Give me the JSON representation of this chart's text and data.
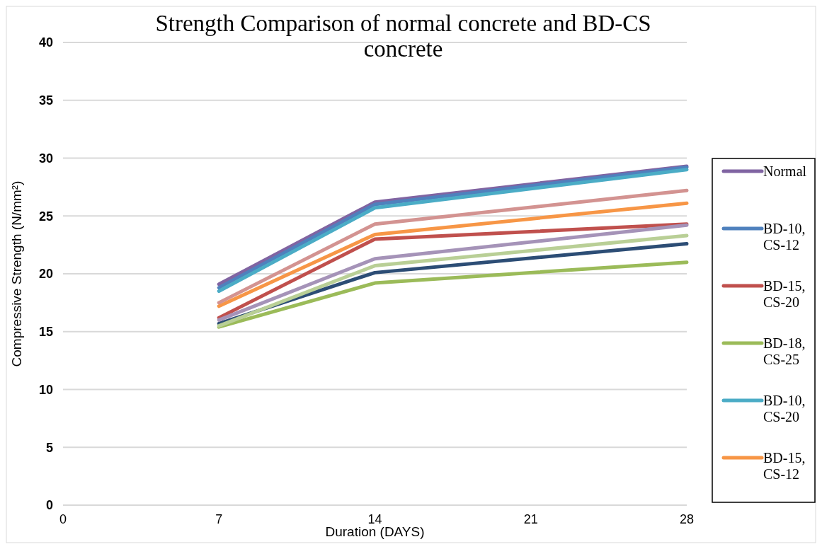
{
  "chart_data": {
    "type": "line",
    "title": "Strength Comparison of normal concrete and BD-CS concrete",
    "xlabel": "Duration (DAYS)",
    "ylabel": "Compressive Strength (N/mm²)",
    "x": [
      7,
      14,
      28
    ],
    "xlim": [
      0,
      28
    ],
    "xticks": [
      0,
      7,
      14,
      21,
      28
    ],
    "ylim": [
      0,
      40
    ],
    "yticks": [
      0,
      5,
      10,
      15,
      20,
      25,
      30,
      35,
      40
    ],
    "grid": "y",
    "legend": "right",
    "marker": "none",
    "line_style": "solid",
    "series": [
      {
        "name": "Normal",
        "color": "#8064a2",
        "values": [
          19.1,
          26.2,
          29.3
        ]
      },
      {
        "name": "BD-10, CS-12",
        "color": "#4f81bd",
        "values": [
          18.8,
          26.0,
          29.2
        ]
      },
      {
        "name": "BD-15, CS-20",
        "color": "#c0504d",
        "values": [
          16.2,
          23.0,
          24.3
        ]
      },
      {
        "name": "BD-18,CS-25",
        "color": "#9bbb59",
        "values": [
          15.4,
          19.2,
          21.0
        ]
      },
      {
        "name": "BD-10,CS-20",
        "color": "#4bacc6",
        "values": [
          18.5,
          25.7,
          29.0
        ]
      },
      {
        "name": "BD-15, CS-12",
        "color": "#f79646",
        "values": [
          17.2,
          23.4,
          26.1
        ]
      },
      {
        "color": "#2c4d75",
        "values": [
          15.7,
          20.1,
          22.6
        ]
      },
      {
        "color": "#d39391",
        "values": [
          17.5,
          24.3,
          27.2
        ]
      },
      {
        "color": "#a593b8",
        "values": [
          16.0,
          21.3,
          24.2
        ]
      },
      {
        "color": "#b9cf96",
        "values": [
          15.5,
          20.7,
          23.3
        ]
      }
    ]
  }
}
